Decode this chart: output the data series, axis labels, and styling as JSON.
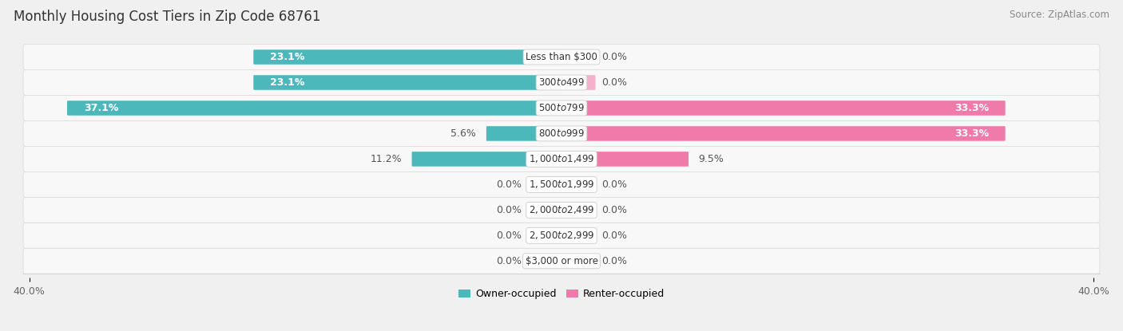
{
  "title": "Monthly Housing Cost Tiers in Zip Code 68761",
  "source": "Source: ZipAtlas.com",
  "categories": [
    "Less than $300",
    "$300 to $499",
    "$500 to $799",
    "$800 to $999",
    "$1,000 to $1,499",
    "$1,500 to $1,999",
    "$2,000 to $2,499",
    "$2,500 to $2,999",
    "$3,000 or more"
  ],
  "owner_values": [
    23.1,
    23.1,
    37.1,
    5.6,
    11.2,
    0.0,
    0.0,
    0.0,
    0.0
  ],
  "renter_values": [
    0.0,
    0.0,
    33.3,
    33.3,
    9.5,
    0.0,
    0.0,
    0.0,
    0.0
  ],
  "owner_color": "#4db8bc",
  "renter_color": "#f07aaa",
  "owner_color_zero": "#8dd4d6",
  "renter_color_zero": "#f5b0cc",
  "owner_label": "Owner-occupied",
  "renter_label": "Renter-occupied",
  "axis_max": 40.0,
  "background_color": "#f0f0f0",
  "row_bg_color": "#f8f8f8",
  "row_border_color": "#dddddd",
  "value_color": "#555555",
  "value_color_white": "#ffffff",
  "title_fontsize": 12,
  "source_fontsize": 8.5,
  "bar_label_fontsize": 9,
  "axis_label_fontsize": 9,
  "legend_fontsize": 9,
  "category_fontsize": 8.5,
  "zero_stub": 2.5
}
